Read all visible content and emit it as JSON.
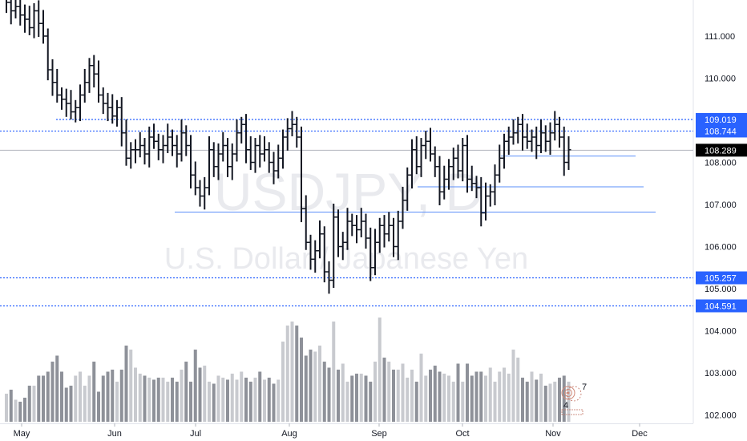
{
  "chart_data": {
    "type": "ohlc-bar",
    "symbol_watermark": "USDJPY, D",
    "description_watermark": "U.S. Dollar / Japanese Yen",
    "ylim": [
      101.8,
      111.8
    ],
    "y_ticks": [
      "102.000",
      "103.000",
      "104.000",
      "105.000",
      "106.000",
      "107.000",
      "108.000",
      "110.000",
      "111.000"
    ],
    "x_ticks": [
      "May",
      "Jun",
      "Jul",
      "Aug",
      "Sep",
      "Oct",
      "Nov",
      "Dec"
    ],
    "last_price": "108.289",
    "level_tags": [
      "109.019",
      "108.744",
      "105.257",
      "104.591"
    ],
    "closes": [
      111.8,
      111.6,
      111.7,
      111.5,
      111.4,
      111.2,
      111.6,
      111.3,
      111.0,
      110.2,
      109.9,
      109.6,
      109.5,
      109.4,
      109.2,
      109.3,
      109.6,
      109.9,
      110.3,
      110.1,
      109.6,
      109.4,
      109.3,
      109.1,
      109.3,
      108.7,
      108.1,
      108.3,
      108.3,
      108.4,
      108.2,
      108.6,
      108.5,
      108.3,
      108.4,
      108.6,
      108.4,
      108.2,
      108.7,
      108.4,
      107.7,
      107.4,
      107.2,
      107.4,
      108.3,
      107.9,
      108.2,
      108.4,
      107.9,
      108.2,
      108.7,
      108.9,
      108.3,
      108.0,
      108.4,
      108.2,
      108.3,
      108.0,
      107.8,
      108.1,
      108.6,
      108.8,
      108.9,
      108.6,
      106.9,
      106.1,
      105.7,
      105.9,
      106.3,
      105.4,
      105.2,
      106.7,
      106.0,
      106.1,
      106.6,
      106.5,
      106.4,
      106.6,
      106.2,
      105.5,
      106.1,
      106.5,
      106.3,
      106.5,
      106.0,
      106.6,
      107.1,
      107.7,
      108.3,
      107.9,
      108.4,
      108.5,
      108.2,
      107.9,
      107.3,
      107.6,
      107.9,
      108.1,
      107.8,
      108.4,
      107.6,
      107.5,
      107.4,
      106.8,
      107.2,
      107.3,
      107.7,
      108.1,
      108.5,
      108.6,
      108.7,
      108.9,
      108.6,
      108.5,
      108.6,
      108.4,
      108.7,
      108.5,
      108.7,
      108.9,
      108.6,
      108.0,
      108.3
    ],
    "volumes": [
      0.14,
      0.16,
      0.11,
      0.1,
      0.12,
      0.18,
      0.18,
      0.23,
      0.23,
      0.25,
      0.3,
      0.33,
      0.25,
      0.17,
      0.18,
      0.23,
      0.25,
      0.18,
      0.23,
      0.3,
      0.15,
      0.23,
      0.25,
      0.26,
      0.2,
      0.26,
      0.38,
      0.36,
      0.27,
      0.24,
      0.23,
      0.22,
      0.21,
      0.22,
      0.22,
      0.2,
      0.22,
      0.2,
      0.26,
      0.3,
      0.2,
      0.36,
      0.27,
      0.28,
      0.2,
      0.19,
      0.23,
      0.22,
      0.21,
      0.24,
      0.21,
      0.25,
      0.22,
      0.2,
      0.22,
      0.25,
      0.21,
      0.22,
      0.19,
      0.21,
      0.4,
      0.48,
      0.5,
      0.48,
      0.42,
      0.33,
      0.36,
      0.35,
      0.38,
      0.3,
      0.27,
      0.5,
      0.26,
      0.29,
      0.2,
      0.23,
      0.24,
      0.24,
      0.23,
      0.2,
      0.3,
      0.52,
      0.32,
      0.3,
      0.26,
      0.26,
      0.29,
      0.22,
      0.26,
      0.2,
      0.34,
      0.23,
      0.26,
      0.28,
      0.25,
      0.24,
      0.23,
      0.2,
      0.29,
      0.2,
      0.29,
      0.23,
      0.25,
      0.25,
      0.23,
      0.27,
      0.2,
      0.25,
      0.27,
      0.24,
      0.36,
      0.32,
      0.22,
      0.2,
      0.25,
      0.21,
      0.24,
      0.18,
      0.19,
      0.2,
      0.22,
      0.23,
      0.2
    ]
  }
}
